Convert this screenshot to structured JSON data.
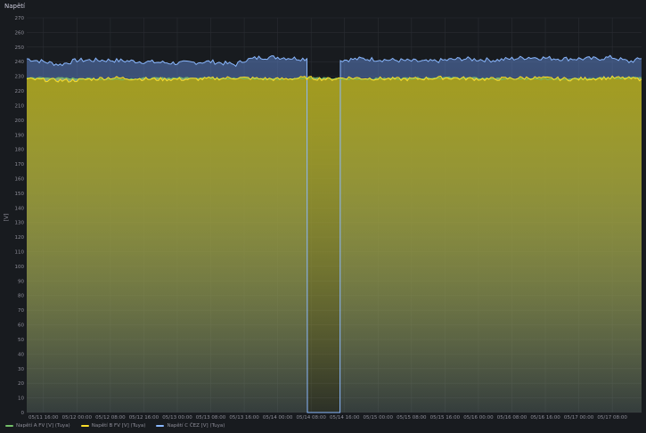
{
  "panel": {
    "title": "Napětí"
  },
  "chart_data": {
    "type": "line",
    "ylabel": "[V]",
    "ylim": [
      0,
      270
    ],
    "yticks": [
      0,
      10,
      20,
      30,
      40,
      50,
      60,
      70,
      80,
      90,
      100,
      110,
      120,
      130,
      140,
      150,
      160,
      170,
      180,
      190,
      200,
      210,
      220,
      230,
      240,
      250,
      260,
      270
    ],
    "xlabels": [
      "05/11 16:00",
      "05/12 00:00",
      "05/12 08:00",
      "05/12 16:00",
      "05/13 00:00",
      "05/13 08:00",
      "05/13 16:00",
      "05/14 00:00",
      "05/14 08:00",
      "05/14 16:00",
      "05/15 00:00",
      "05/15 08:00",
      "05/15 16:00",
      "05/16 00:00",
      "05/16 08:00",
      "05/16 16:00",
      "05/17 00:00",
      "05/17 08:00"
    ],
    "x_hours_from_0511_1200": [
      4,
      12,
      20,
      28,
      36,
      44,
      52,
      60,
      68,
      76,
      84,
      92,
      100,
      108,
      116,
      124,
      132,
      140
    ],
    "x_range_hours": [
      0,
      147
    ],
    "grid": true,
    "series": [
      {
        "name": "Napětí A FV [V] (Tuya)",
        "color": "#73bf69",
        "points": [
          [
            0,
            229
          ],
          [
            20,
            228
          ],
          [
            40,
            229
          ],
          [
            60,
            228
          ],
          [
            67,
            229
          ],
          [
            76,
            228
          ],
          [
            100,
            229
          ],
          [
            120,
            228
          ],
          [
            147,
            229
          ]
        ]
      },
      {
        "name": "Napětí B FV [V] (Tuya)",
        "color": "#fade2a",
        "points": [
          [
            0,
            228
          ],
          [
            10,
            227
          ],
          [
            20,
            229
          ],
          [
            30,
            228
          ],
          [
            40,
            228
          ],
          [
            50,
            229
          ],
          [
            60,
            228
          ],
          [
            67,
            229
          ],
          [
            72,
            228
          ],
          [
            76,
            229
          ],
          [
            90,
            228
          ],
          [
            100,
            229
          ],
          [
            110,
            228
          ],
          [
            120,
            229
          ],
          [
            130,
            228
          ],
          [
            140,
            229
          ],
          [
            147,
            228
          ]
        ]
      },
      {
        "name": "Napětí C ČEZ [V] (Tuya)",
        "color": "#8ab8ff",
        "points": [
          [
            0,
            242
          ],
          [
            4,
            240
          ],
          [
            8,
            238
          ],
          [
            12,
            241
          ],
          [
            20,
            241
          ],
          [
            28,
            240
          ],
          [
            36,
            239
          ],
          [
            44,
            240
          ],
          [
            50,
            238
          ],
          [
            52,
            241
          ],
          [
            56,
            243
          ],
          [
            60,
            243
          ],
          [
            66,
            242
          ],
          [
            67,
            242
          ],
          [
            67.1,
            0
          ],
          [
            74.9,
            0
          ],
          [
            75,
            241
          ],
          [
            80,
            242
          ],
          [
            88,
            241
          ],
          [
            96,
            240
          ],
          [
            104,
            242
          ],
          [
            112,
            241
          ],
          [
            120,
            243
          ],
          [
            128,
            242
          ],
          [
            136,
            242
          ],
          [
            140,
            243
          ],
          [
            144,
            240
          ],
          [
            147,
            242
          ]
        ]
      }
    ]
  }
}
